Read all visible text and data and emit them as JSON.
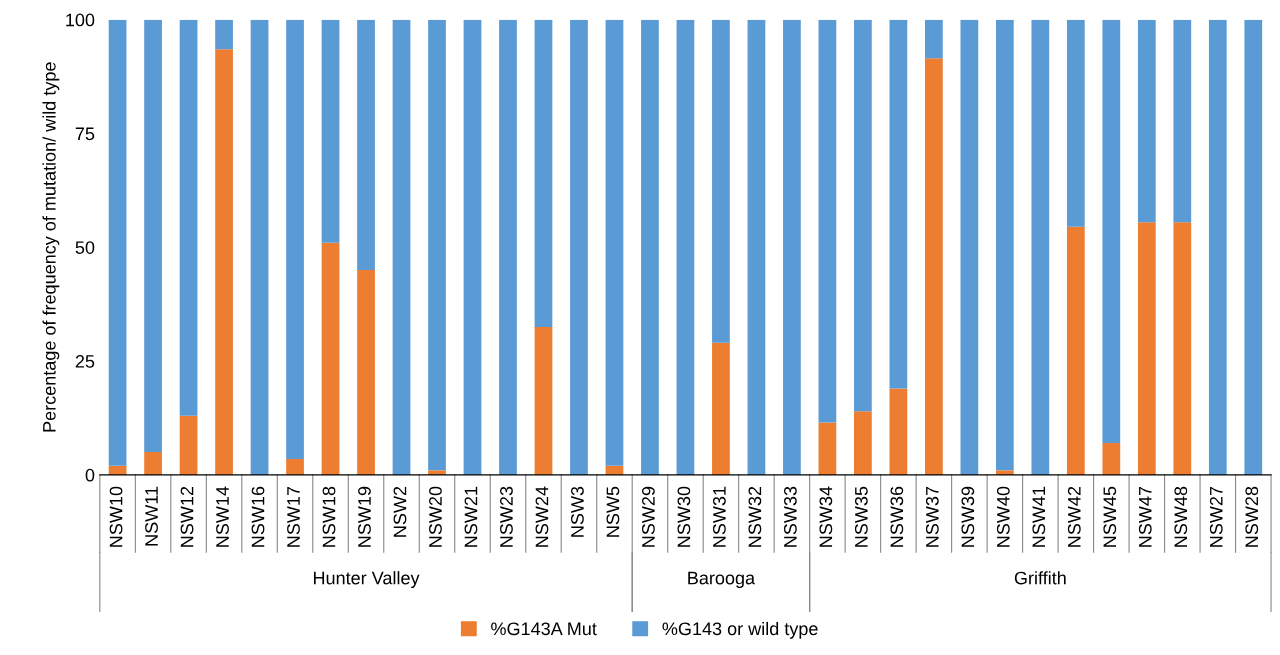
{
  "chart_data": {
    "type": "bar",
    "stacked": true,
    "ylabel": "Percentage of frequency of mutation/ wild type",
    "categories": [
      "NSW10",
      "NSW11",
      "NSW12",
      "NSW14",
      "NSW16",
      "NSW17",
      "NSW18",
      "NSW19",
      "NSW2",
      "NSW20",
      "NSW21",
      "NSW23",
      "NSW24",
      "NSW3",
      "NSW5",
      "NSW29",
      "NSW30",
      "NSW31",
      "NSW32",
      "NSW33",
      "NSW34",
      "NSW35",
      "NSW36",
      "NSW37",
      "NSW39",
      "NSW40",
      "NSW41",
      "NSW42",
      "NSW45",
      "NSW47",
      "NSW48",
      "NSW27",
      "NSW28"
    ],
    "series": [
      {
        "name": "%G143A Mut",
        "color": "#ed7d31",
        "values": [
          2,
          5,
          13,
          93.5,
          0,
          3.5,
          51,
          45,
          0,
          1,
          0,
          0,
          32.5,
          0,
          2,
          0,
          0,
          29,
          0,
          0,
          11.5,
          14,
          19,
          91.5,
          0,
          1,
          0,
          54.5,
          7,
          55.5,
          55.5,
          0,
          0
        ]
      },
      {
        "name": "%G143 or wild type",
        "color": "#5b9bd5",
        "values": [
          98,
          95,
          87,
          6.5,
          100,
          96.5,
          49,
          55,
          100,
          99,
          100,
          100,
          67.5,
          100,
          98,
          100,
          100,
          71,
          100,
          100,
          88.5,
          86,
          81,
          8.5,
          100,
          99,
          100,
          45.5,
          93,
          44.5,
          44.5,
          100,
          100
        ]
      }
    ],
    "ylim": [
      0,
      100
    ],
    "yticks": [
      0,
      25,
      50,
      75,
      100
    ],
    "grid": false,
    "legend": "bottom",
    "annotations": [
      "Hunter Valley",
      "Barooga",
      "Griffith"
    ]
  }
}
